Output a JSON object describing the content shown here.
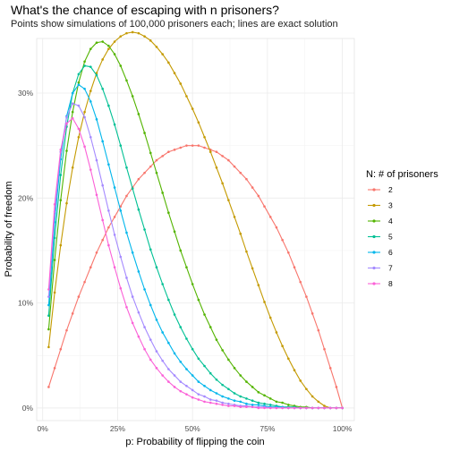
{
  "chart_data": {
    "type": "line",
    "title": "What's the chance of escaping with n prisoners?",
    "subtitle": "Points show simulations of 100,000 prisoners each; lines are exact solution",
    "xlabel": "p: Probability of flipping the coin",
    "ylabel": "Probability of freedom",
    "xlim": [
      0.02,
      1.0
    ],
    "ylim": [
      0,
      0.33
    ],
    "x_ticks": [
      0,
      0.25,
      0.5,
      0.75,
      1.0
    ],
    "x_tick_labels": [
      "0%",
      "25%",
      "50%",
      "75%",
      "100%"
    ],
    "y_ticks": [
      0,
      0.1,
      0.2,
      0.3
    ],
    "y_tick_labels": [
      "0%",
      "10%",
      "20%",
      "30%"
    ],
    "grid": true,
    "legend_position": "right",
    "legend_title": "N: # of prisoners",
    "x": [
      0.02,
      0.04,
      0.06,
      0.08,
      0.1,
      0.12,
      0.14,
      0.16,
      0.18,
      0.2,
      0.22,
      0.24,
      0.26,
      0.28,
      0.3,
      0.32,
      0.34,
      0.36,
      0.38,
      0.4,
      0.42,
      0.44,
      0.46,
      0.48,
      0.5,
      0.52,
      0.54,
      0.56,
      0.58,
      0.6,
      0.62,
      0.64,
      0.66,
      0.68,
      0.7,
      0.72,
      0.74,
      0.76,
      0.78,
      0.8,
      0.82,
      0.84,
      0.86,
      0.88,
      0.9,
      0.92,
      0.94,
      0.96,
      0.98,
      1.0
    ],
    "series": [
      {
        "name": "2",
        "color": "#F8766D",
        "values": [
          0.02,
          0.038,
          0.056,
          0.074,
          0.09,
          0.106,
          0.12,
          0.134,
          0.148,
          0.16,
          0.172,
          0.182,
          0.192,
          0.202,
          0.21,
          0.218,
          0.224,
          0.23,
          0.236,
          0.24,
          0.244,
          0.246,
          0.248,
          0.25,
          0.25,
          0.25,
          0.248,
          0.246,
          0.244,
          0.24,
          0.236,
          0.23,
          0.224,
          0.218,
          0.21,
          0.202,
          0.192,
          0.182,
          0.172,
          0.16,
          0.148,
          0.134,
          0.12,
          0.106,
          0.09,
          0.074,
          0.056,
          0.038,
          0.02,
          0.0
        ]
      },
      {
        "name": "3",
        "color": "#C49A00",
        "values": [
          0.058,
          0.11,
          0.155,
          0.195,
          0.229,
          0.258,
          0.282,
          0.302,
          0.319,
          0.332,
          0.342,
          0.349,
          0.354,
          0.357,
          0.358,
          0.357,
          0.354,
          0.35,
          0.344,
          0.337,
          0.329,
          0.319,
          0.309,
          0.297,
          0.285,
          0.272,
          0.258,
          0.244,
          0.229,
          0.214,
          0.198,
          0.182,
          0.166,
          0.149,
          0.133,
          0.117,
          0.101,
          0.086,
          0.072,
          0.059,
          0.047,
          0.036,
          0.026,
          0.018,
          0.011,
          0.006,
          0.002,
          0.0,
          0.0,
          0.0
        ]
      },
      {
        "name": "4",
        "color": "#53B400",
        "values": [
          0.075,
          0.141,
          0.198,
          0.245,
          0.282,
          0.31,
          0.33,
          0.342,
          0.348,
          0.349,
          0.345,
          0.337,
          0.326,
          0.312,
          0.297,
          0.28,
          0.262,
          0.243,
          0.224,
          0.205,
          0.186,
          0.168,
          0.15,
          0.134,
          0.118,
          0.103,
          0.089,
          0.077,
          0.065,
          0.055,
          0.046,
          0.038,
          0.031,
          0.025,
          0.02,
          0.015,
          0.012,
          0.009,
          0.006,
          0.005,
          0.003,
          0.002,
          0.001,
          0.001,
          0.0,
          0.0,
          0.0,
          0.0,
          0.0,
          0.0
        ]
      },
      {
        "name": "5",
        "color": "#00C094",
        "values": [
          0.088,
          0.162,
          0.222,
          0.268,
          0.3,
          0.318,
          0.326,
          0.325,
          0.317,
          0.304,
          0.288,
          0.27,
          0.25,
          0.229,
          0.209,
          0.189,
          0.17,
          0.151,
          0.134,
          0.118,
          0.103,
          0.089,
          0.077,
          0.066,
          0.056,
          0.047,
          0.04,
          0.033,
          0.027,
          0.022,
          0.018,
          0.014,
          0.011,
          0.009,
          0.007,
          0.005,
          0.004,
          0.003,
          0.002,
          0.001,
          0.001,
          0.001,
          0.0,
          0.0,
          0.0,
          0.0,
          0.0,
          0.0,
          0.0,
          0.0
        ]
      },
      {
        "name": "6",
        "color": "#00B6EB",
        "values": [
          0.098,
          0.177,
          0.237,
          0.278,
          0.3,
          0.308,
          0.304,
          0.292,
          0.275,
          0.254,
          0.232,
          0.21,
          0.188,
          0.167,
          0.148,
          0.13,
          0.113,
          0.098,
          0.084,
          0.072,
          0.062,
          0.052,
          0.044,
          0.037,
          0.031,
          0.025,
          0.021,
          0.017,
          0.014,
          0.011,
          0.009,
          0.007,
          0.006,
          0.004,
          0.003,
          0.003,
          0.002,
          0.001,
          0.001,
          0.001,
          0.0,
          0.0,
          0.0,
          0.0,
          0.0,
          0.0,
          0.0,
          0.0,
          0.0,
          0.0
        ]
      },
      {
        "name": "7",
        "color": "#A58AFF",
        "values": [
          0.106,
          0.187,
          0.244,
          0.277,
          0.29,
          0.288,
          0.277,
          0.258,
          0.236,
          0.212,
          0.188,
          0.165,
          0.144,
          0.124,
          0.106,
          0.091,
          0.077,
          0.065,
          0.054,
          0.045,
          0.037,
          0.031,
          0.025,
          0.021,
          0.017,
          0.013,
          0.011,
          0.008,
          0.007,
          0.005,
          0.004,
          0.003,
          0.002,
          0.002,
          0.001,
          0.001,
          0.001,
          0.0,
          0.0,
          0.0,
          0.0,
          0.0,
          0.0,
          0.0,
          0.0,
          0.0,
          0.0,
          0.0,
          0.0,
          0.0
        ]
      },
      {
        "name": "8",
        "color": "#FB61D7",
        "values": [
          0.113,
          0.194,
          0.246,
          0.271,
          0.276,
          0.266,
          0.249,
          0.227,
          0.203,
          0.179,
          0.155,
          0.134,
          0.114,
          0.096,
          0.081,
          0.068,
          0.056,
          0.046,
          0.038,
          0.031,
          0.025,
          0.02,
          0.016,
          0.013,
          0.01,
          0.008,
          0.006,
          0.005,
          0.004,
          0.003,
          0.002,
          0.002,
          0.001,
          0.001,
          0.001,
          0.0,
          0.0,
          0.0,
          0.0,
          0.0,
          0.0,
          0.0,
          0.0,
          0.0,
          0.0,
          0.0,
          0.0,
          0.0,
          0.0,
          0.0
        ]
      }
    ]
  }
}
